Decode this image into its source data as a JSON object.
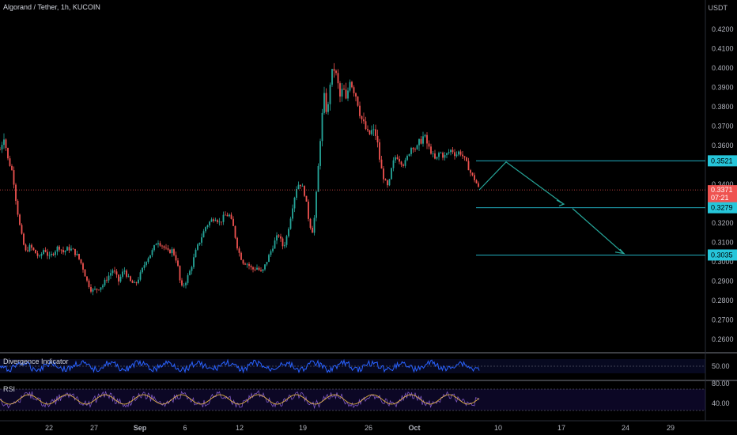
{
  "header": {
    "symbol_title": "Algorand / Tether, 1h, KUCOIN",
    "currency": "USDT"
  },
  "colors": {
    "background": "#000000",
    "up": "#26a69a",
    "down": "#ef5350",
    "price_line": "#ef5350",
    "level_line": "#26c6da",
    "arrow": "#26a69a",
    "divergence_line": "#2962ff",
    "rsi_line": "#7e57c2",
    "rsi_signal": "#f5c242",
    "axis_text": "#b2b5be"
  },
  "chart_data": {
    "type": "candlestick",
    "title": "Algorand / Tether, 1h, KUCOIN",
    "y_axis": {
      "unit": "USDT",
      "ticks": [
        "0.4200",
        "0.4100",
        "0.4000",
        "0.3900",
        "0.3800",
        "0.3700",
        "0.3600",
        "0.3400",
        "0.3200",
        "0.3100",
        "0.3000",
        "0.2900",
        "0.2800",
        "0.2700",
        "0.2600"
      ],
      "range": [
        0.255,
        0.427
      ]
    },
    "x_axis": {
      "ticks": [
        "22",
        "27",
        "Sep",
        "6",
        "12",
        "19",
        "26",
        "Oct",
        "10",
        "17",
        "24",
        "29"
      ],
      "range_days": [
        0,
        49
      ]
    },
    "price_path": [
      [
        0,
        0.358
      ],
      [
        0.5,
        0.365
      ],
      [
        1.0,
        0.353
      ],
      [
        1.6,
        0.346
      ],
      [
        2.1,
        0.329
      ],
      [
        2.6,
        0.316
      ],
      [
        3.2,
        0.305
      ],
      [
        3.8,
        0.308
      ],
      [
        4.4,
        0.305
      ],
      [
        5.0,
        0.302
      ],
      [
        5.6,
        0.307
      ],
      [
        6.2,
        0.302
      ],
      [
        6.8,
        0.305
      ],
      [
        7.4,
        0.308
      ],
      [
        8.0,
        0.305
      ],
      [
        8.6,
        0.307
      ],
      [
        9.2,
        0.306
      ],
      [
        9.8,
        0.303
      ],
      [
        10.4,
        0.298
      ],
      [
        11.0,
        0.29
      ],
      [
        11.6,
        0.285
      ],
      [
        12.3,
        0.286
      ],
      [
        13.0,
        0.288
      ],
      [
        13.6,
        0.292
      ],
      [
        14.3,
        0.296
      ],
      [
        15.0,
        0.29
      ],
      [
        15.7,
        0.296
      ],
      [
        16.4,
        0.29
      ],
      [
        17.1,
        0.288
      ],
      [
        17.8,
        0.294
      ],
      [
        18.5,
        0.301
      ],
      [
        19.2,
        0.305
      ],
      [
        19.9,
        0.311
      ],
      [
        20.6,
        0.308
      ],
      [
        21.2,
        0.305
      ],
      [
        21.8,
        0.306
      ],
      [
        22.4,
        0.3
      ],
      [
        22.9,
        0.286
      ],
      [
        23.5,
        0.29
      ],
      [
        24.1,
        0.296
      ],
      [
        24.8,
        0.306
      ],
      [
        25.4,
        0.312
      ],
      [
        26.0,
        0.318
      ],
      [
        26.6,
        0.321
      ],
      [
        27.2,
        0.323
      ],
      [
        27.8,
        0.32
      ],
      [
        28.4,
        0.324
      ],
      [
        29.0,
        0.324
      ],
      [
        29.5,
        0.318
      ],
      [
        30.1,
        0.306
      ],
      [
        30.7,
        0.3
      ],
      [
        31.3,
        0.299
      ],
      [
        31.9,
        0.296
      ],
      [
        32.5,
        0.297
      ],
      [
        33.1,
        0.294
      ],
      [
        33.7,
        0.3
      ],
      [
        34.3,
        0.306
      ],
      [
        34.9,
        0.312
      ],
      [
        35.3,
        0.314
      ],
      [
        35.7,
        0.308
      ],
      [
        36.1,
        0.31
      ],
      [
        36.6,
        0.32
      ],
      [
        37.1,
        0.331
      ],
      [
        37.6,
        0.34
      ],
      [
        38.1,
        0.34
      ],
      [
        38.6,
        0.334
      ],
      [
        39.1,
        0.32
      ],
      [
        39.6,
        0.315
      ],
      [
        40.1,
        0.34
      ],
      [
        40.6,
        0.37
      ],
      [
        41.0,
        0.385
      ],
      [
        41.4,
        0.375
      ],
      [
        41.8,
        0.395
      ],
      [
        42.2,
        0.4
      ],
      [
        42.6,
        0.395
      ],
      [
        43.0,
        0.385
      ],
      [
        43.4,
        0.39
      ],
      [
        43.8,
        0.382
      ],
      [
        44.2,
        0.395
      ],
      [
        44.6,
        0.39
      ],
      [
        45.1,
        0.385
      ],
      [
        45.6,
        0.375
      ],
      [
        46.1,
        0.37
      ],
      [
        46.6,
        0.365
      ],
      [
        47.1,
        0.368
      ],
      [
        47.6,
        0.365
      ],
      [
        48.1,
        0.35
      ],
      [
        48.6,
        0.342
      ],
      [
        49.1,
        0.338
      ],
      [
        49.6,
        0.35
      ],
      [
        50.1,
        0.355
      ],
      [
        50.6,
        0.352
      ],
      [
        51.1,
        0.35
      ],
      [
        51.6,
        0.355
      ],
      [
        52.1,
        0.36
      ],
      [
        52.6,
        0.358
      ],
      [
        53.1,
        0.362
      ],
      [
        53.6,
        0.365
      ],
      [
        54.1,
        0.36
      ],
      [
        54.6,
        0.356
      ],
      [
        55.1,
        0.352
      ],
      [
        55.6,
        0.357
      ],
      [
        56.1,
        0.354
      ],
      [
        56.6,
        0.356
      ],
      [
        57.1,
        0.358
      ],
      [
        57.6,
        0.355
      ],
      [
        58.1,
        0.357
      ],
      [
        58.6,
        0.354
      ],
      [
        59.1,
        0.35
      ],
      [
        59.6,
        0.345
      ],
      [
        60.1,
        0.342
      ],
      [
        60.6,
        0.3371
      ]
    ],
    "current_price": "0.3371",
    "countdown": "07:21",
    "levels": [
      {
        "label": "0.3521",
        "value": 0.3521
      },
      {
        "label": "0.3279",
        "value": 0.3279
      },
      {
        "label": "0.3035",
        "value": 0.3035
      }
    ],
    "projection_path": [
      [
        60.6,
        0.3371
      ],
      [
        63.8,
        0.3515
      ],
      [
        69.5,
        0.33
      ],
      [
        69.0,
        0.3295
      ]
    ],
    "projection_path_2": [
      [
        70.5,
        0.327
      ],
      [
        77.0,
        0.305
      ]
    ],
    "indicators": [
      {
        "name": "Divergence Indicator",
        "ticks": [
          "50.00"
        ],
        "range": [
          0,
          100
        ]
      },
      {
        "name": "RSI",
        "ticks": [
          "80.00",
          "40.00"
        ],
        "range": [
          20,
          95
        ]
      }
    ]
  }
}
